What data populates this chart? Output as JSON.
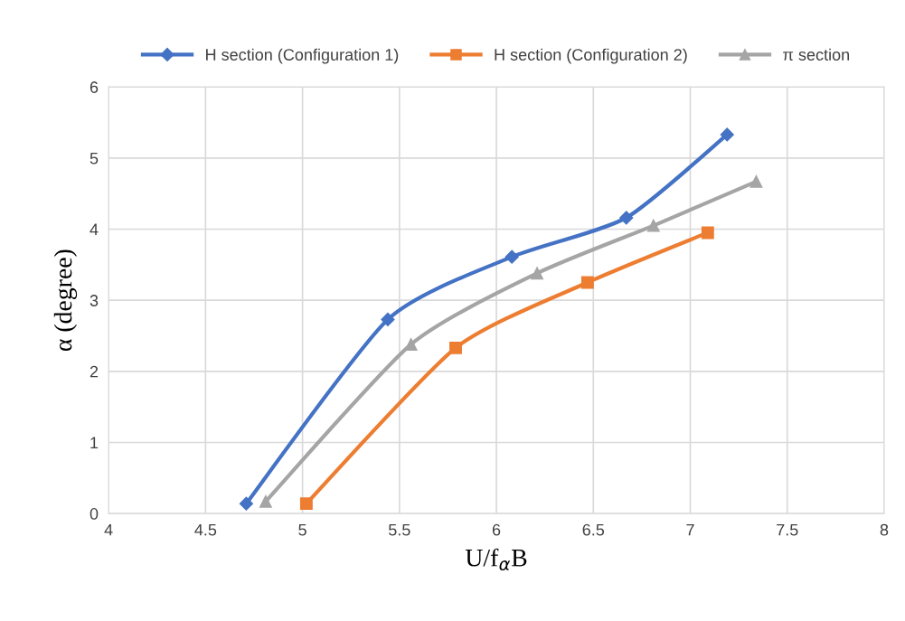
{
  "chart_data": {
    "type": "line",
    "xlabel": "U/f$_{α}$B",
    "ylabel": "α (degree)",
    "xlim": [
      4,
      8
    ],
    "xticks": [
      4,
      4.5,
      5,
      5.5,
      6,
      6.5,
      7,
      7.5,
      8
    ],
    "ylim": [
      0,
      6
    ],
    "yticks": [
      0,
      1,
      2,
      3,
      4,
      5,
      6
    ],
    "grid": true,
    "legend": "top",
    "line_style": "solid",
    "series": [
      {
        "name": "H section (Configuration 1)",
        "color": "#4472c4",
        "marker": "diamond",
        "x": [
          4.71,
          5.44,
          6.08,
          6.67,
          7.19
        ],
        "values": [
          0.14,
          2.73,
          3.61,
          4.16,
          5.33
        ]
      },
      {
        "name": "H section (Configuration 2)",
        "color": "#ed7d31",
        "marker": "square",
        "x": [
          5.02,
          5.79,
          6.47,
          7.09
        ],
        "values": [
          0.14,
          2.33,
          3.25,
          3.95
        ]
      },
      {
        "name": "π section",
        "color": "#a5a5a5",
        "marker": "triangle",
        "x": [
          4.81,
          5.56,
          6.21,
          6.81,
          7.34
        ],
        "values": [
          0.17,
          2.38,
          3.38,
          4.05,
          4.67
        ]
      }
    ]
  }
}
